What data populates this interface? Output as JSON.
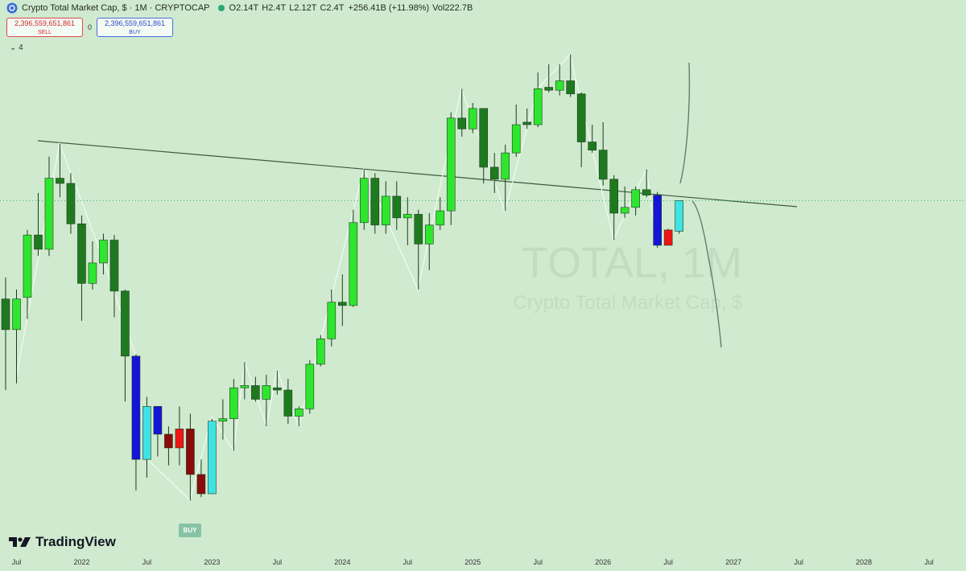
{
  "header": {
    "symbol": "Crypto Total Market Cap, $ · 1M · CRYPTOCAP",
    "ohlc": [
      {
        "label": "O",
        "value": "2.14T"
      },
      {
        "label": "H",
        "value": "2.4T"
      },
      {
        "label": "L",
        "value": "2.12T"
      },
      {
        "label": "C",
        "value": "2.4T"
      }
    ],
    "change": "+256.41B (+11.98%)",
    "volume_label": "Vol",
    "volume": "222.7B",
    "sell_price": "2,396,559,651,861",
    "sell_label": "SELL",
    "spread": "0",
    "buy_price": "2,396,559,651,861",
    "buy_label": "BUY",
    "indicators_count": "4"
  },
  "watermark": {
    "ticker": "TOTAL, 1M",
    "name": "Crypto Total Market Cap, $"
  },
  "marker": "BUY",
  "brand": "TradingView",
  "chart_data": {
    "type": "candlestick",
    "log_scale": true,
    "grid": false,
    "x": [
      "2021-06",
      "2021-07",
      "2021-08",
      "2021-09",
      "2021-10",
      "2021-11",
      "2021-12",
      "2022-01",
      "2022-02",
      "2022-03",
      "2022-04",
      "2022-05",
      "2022-06",
      "2022-07",
      "2022-08",
      "2022-09",
      "2022-10",
      "2022-11",
      "2022-12",
      "2023-01",
      "2023-02",
      "2023-03",
      "2023-04",
      "2023-05",
      "2023-06",
      "2023-07",
      "2023-08",
      "2023-09",
      "2023-10",
      "2023-11",
      "2023-12",
      "2024-01",
      "2024-02",
      "2024-03",
      "2024-04",
      "2024-05",
      "2024-06",
      "2024-07",
      "2024-08",
      "2024-09",
      "2024-10",
      "2024-11",
      "2024-12",
      "2025-01",
      "2025-02",
      "2025-03",
      "2025-04",
      "2025-05",
      "2025-06",
      "2025-07",
      "2025-08",
      "2025-09",
      "2025-10",
      "2025-11",
      "2025-12",
      "2026-01",
      "2026-02",
      "2026-03",
      "2026-04",
      "2026-05",
      "2026-06",
      "2026-07",
      "2026-08"
    ],
    "open": [
      1.66,
      1.48,
      1.67,
      2.11,
      2.0,
      2.61,
      2.56,
      2.2,
      1.76,
      1.9,
      2.07,
      1.71,
      1.34,
      0.91,
      1.11,
      1.0,
      0.95,
      1.02,
      0.86,
      0.8,
      1.05,
      1.06,
      1.19,
      1.2,
      1.14,
      1.19,
      1.18,
      1.07,
      1.1,
      1.3,
      1.43,
      1.64,
      1.62,
      2.21,
      2.61,
      2.19,
      2.44,
      2.25,
      2.28,
      2.04,
      2.19,
      2.31,
      3.27,
      3.14,
      3.39,
      2.72,
      2.6,
      2.87,
      3.22,
      3.19,
      3.67,
      3.63,
      3.76,
      3.58,
      2.99,
      2.9,
      2.6,
      2.29,
      2.34,
      2.5,
      2.45,
      2.03,
      2.14
    ],
    "high": [
      1.8,
      1.72,
      2.15,
      2.47,
      2.83,
      2.97,
      2.66,
      2.27,
      2.06,
      2.12,
      2.11,
      1.72,
      1.35,
      1.15,
      1.11,
      1.03,
      1.11,
      1.08,
      0.91,
      1.06,
      1.14,
      1.23,
      1.31,
      1.24,
      1.25,
      1.27,
      1.23,
      1.11,
      1.32,
      1.45,
      1.72,
      1.82,
      2.32,
      2.7,
      2.66,
      2.58,
      2.58,
      2.43,
      2.32,
      2.29,
      2.43,
      3.34,
      3.65,
      3.46,
      3.39,
      2.87,
      2.96,
      3.44,
      3.39,
      3.88,
      4.0,
      4.0,
      4.15,
      3.6,
      3.19,
      3.22,
      2.64,
      2.53,
      2.53,
      2.7,
      2.48,
      2.16,
      2.4
    ],
    "low": [
      1.18,
      1.21,
      1.54,
      1.95,
      1.95,
      2.43,
      2.12,
      1.53,
      1.72,
      1.82,
      1.55,
      1.13,
      0.81,
      0.85,
      0.92,
      0.89,
      0.89,
      0.78,
      0.79,
      0.8,
      0.98,
      0.94,
      1.14,
      1.13,
      1.03,
      1.16,
      1.04,
      1.03,
      1.08,
      1.29,
      1.39,
      1.5,
      1.61,
      2.15,
      2.12,
      2.12,
      2.15,
      2.03,
      1.72,
      1.85,
      2.15,
      2.19,
      3.05,
      3.09,
      2.56,
      2.47,
      2.31,
      2.83,
      3.14,
      3.16,
      3.6,
      3.56,
      3.54,
      2.72,
      2.87,
      2.54,
      2.07,
      2.25,
      2.27,
      2.43,
      2.01,
      2.03,
      2.12
    ],
    "close": [
      1.48,
      1.66,
      2.11,
      2.0,
      2.61,
      2.56,
      2.2,
      1.76,
      1.9,
      2.07,
      1.71,
      1.34,
      0.91,
      1.11,
      1.0,
      0.95,
      1.02,
      0.86,
      0.8,
      1.05,
      1.06,
      1.19,
      1.2,
      1.14,
      1.2,
      1.18,
      1.07,
      1.1,
      1.3,
      1.43,
      1.64,
      1.62,
      2.21,
      2.61,
      2.19,
      2.44,
      2.25,
      2.28,
      2.04,
      2.19,
      2.31,
      3.27,
      3.14,
      3.39,
      2.72,
      2.6,
      2.87,
      3.19,
      3.19,
      3.65,
      3.63,
      3.76,
      3.58,
      2.99,
      2.9,
      2.6,
      2.29,
      2.34,
      2.5,
      2.45,
      2.03,
      2.15,
      2.4
    ],
    "colors": [
      "#1f7a1f",
      "#2fe62f",
      "#2fe62f",
      "#1f7a1f",
      "#2fe62f",
      "#1f7a1f",
      "#1f7a1f",
      "#1f7a1f",
      "#2fe62f",
      "#2fe62f",
      "#1f7a1f",
      "#1f7a1f",
      "#1414d8",
      "#3fe3e3",
      "#1414d8",
      "#8b0a0a",
      "#f01414",
      "#8b0a0a",
      "#8b0a0a",
      "#3fe3e3",
      "#2fe62f",
      "#2fe62f",
      "#2fe62f",
      "#1f7a1f",
      "#2fe62f",
      "#1f7a1f",
      "#1f7a1f",
      "#2fe62f",
      "#2fe62f",
      "#2fe62f",
      "#2fe62f",
      "#1f7a1f",
      "#2fe62f",
      "#2fe62f",
      "#1f7a1f",
      "#2fe62f",
      "#1f7a1f",
      "#2fe62f",
      "#1f7a1f",
      "#2fe62f",
      "#2fe62f",
      "#2fe62f",
      "#1f7a1f",
      "#2fe62f",
      "#1f7a1f",
      "#1f7a1f",
      "#2fe62f",
      "#2fe62f",
      "#1f7a1f",
      "#2fe62f",
      "#1f7a1f",
      "#2fe62f",
      "#1f7a1f",
      "#1f7a1f",
      "#1f7a1f",
      "#1f7a1f",
      "#1f7a1f",
      "#2fe62f",
      "#2fe62f",
      "#1f7a1f",
      "#1414d8",
      "#f01414",
      "#3fe3e3"
    ],
    "ylim": [
      0.64,
      5.09
    ],
    "xlim": [
      "2021-06",
      "2028-07"
    ],
    "xticks": [
      {
        "value": "2021-07",
        "label": "Jul"
      },
      {
        "value": "2022-01",
        "label": "2022"
      },
      {
        "value": "2022-07",
        "label": "Jul"
      },
      {
        "value": "2023-01",
        "label": "2023"
      },
      {
        "value": "2023-07",
        "label": "Jul"
      },
      {
        "value": "2024-01",
        "label": "2024"
      },
      {
        "value": "2024-07",
        "label": "Jul"
      },
      {
        "value": "2025-01",
        "label": "2025"
      },
      {
        "value": "2025-07",
        "label": "Jul"
      },
      {
        "value": "2026-01",
        "label": "2026"
      },
      {
        "value": "2026-07",
        "label": "Jul"
      },
      {
        "value": "2027-01",
        "label": "2027"
      },
      {
        "value": "2027-07",
        "label": "Jul"
      },
      {
        "value": "2028-01",
        "label": "2028"
      },
      {
        "value": "2028-07",
        "label": "Jul"
      }
    ]
  }
}
